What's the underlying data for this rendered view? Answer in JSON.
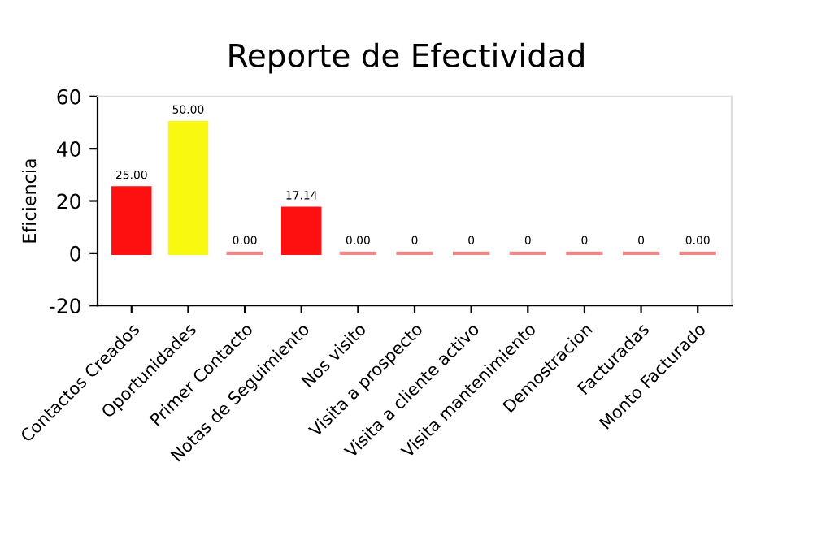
{
  "chart_data": {
    "type": "bar",
    "title": "Reporte de Efectividad",
    "ylabel": "Eficiencia",
    "categories": [
      "Contactos Creados",
      "Oportunidades",
      "Primer Contacto",
      "Notas de Seguimiento",
      "Nos visito",
      "Visita a prospecto",
      "Visita a cliente activo",
      "Visita mantenimiento",
      "Demostracion",
      "Facturadas",
      "Monto Facturado"
    ],
    "values": [
      25,
      50,
      0,
      17.14,
      0,
      0,
      0,
      0,
      0,
      0,
      0
    ],
    "colors": [
      "#ff1010",
      "#f8f810",
      "#f08a8a",
      "#ff1010",
      "#f08a8a",
      "#f08a8a",
      "#f08a8a",
      "#f08a8a",
      "#f08a8a",
      "#f08a8a",
      "#f08a8a"
    ],
    "value_labels": [
      "25.00",
      "50.00",
      "0.00",
      "17.14",
      "0.00",
      "0",
      "0",
      "0",
      "0",
      "0",
      "0.00"
    ],
    "ylim": [
      -20,
      60
    ],
    "yticks": [
      -20,
      0,
      20,
      40,
      60
    ],
    "grid": false,
    "legend": false
  }
}
